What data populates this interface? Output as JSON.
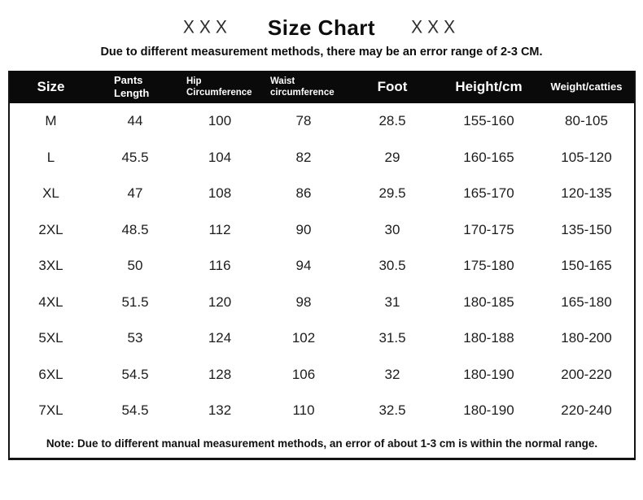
{
  "header": {
    "decoration_left": "XXX",
    "title": "Size Chart",
    "decoration_right": "XXX",
    "subtitle": "Due to different measurement methods, there may be an error range of 2-3 CM."
  },
  "table": {
    "columns": [
      {
        "label": "Size",
        "size": "large"
      },
      {
        "label": "Pants Length",
        "size": "medium"
      },
      {
        "label": "Hip Circumference",
        "size": "small"
      },
      {
        "label": "Waist circumference",
        "size": "small"
      },
      {
        "label": "Foot",
        "size": "large"
      },
      {
        "label": "Height/cm",
        "size": "large"
      },
      {
        "label": "Weight/catties",
        "size": "medium"
      }
    ],
    "rows": [
      [
        "M",
        "44",
        "100",
        "78",
        "28.5",
        "155-160",
        "80-105"
      ],
      [
        "L",
        "45.5",
        "104",
        "82",
        "29",
        "160-165",
        "105-120"
      ],
      [
        "XL",
        "47",
        "108",
        "86",
        "29.5",
        "165-170",
        "120-135"
      ],
      [
        "2XL",
        "48.5",
        "112",
        "90",
        "30",
        "170-175",
        "135-150"
      ],
      [
        "3XL",
        "50",
        "116",
        "94",
        "30.5",
        "175-180",
        "150-165"
      ],
      [
        "4XL",
        "51.5",
        "120",
        "98",
        "31",
        "180-185",
        "165-180"
      ],
      [
        "5XL",
        "53",
        "124",
        "102",
        "31.5",
        "180-188",
        "180-200"
      ],
      [
        "6XL",
        "54.5",
        "128",
        "106",
        "32",
        "180-190",
        "200-220"
      ],
      [
        "7XL",
        "54.5",
        "132",
        "110",
        "32.5",
        "180-190",
        "220-240"
      ]
    ],
    "note": "Note: Due to different manual measurement methods, an error of about 1-3 cm is within the normal range."
  },
  "colors": {
    "header_bg": "#0a0a0a",
    "header_text": "#ffffff",
    "body_text": "#1d1d1d",
    "border": "#141414",
    "background": "#ffffff"
  }
}
